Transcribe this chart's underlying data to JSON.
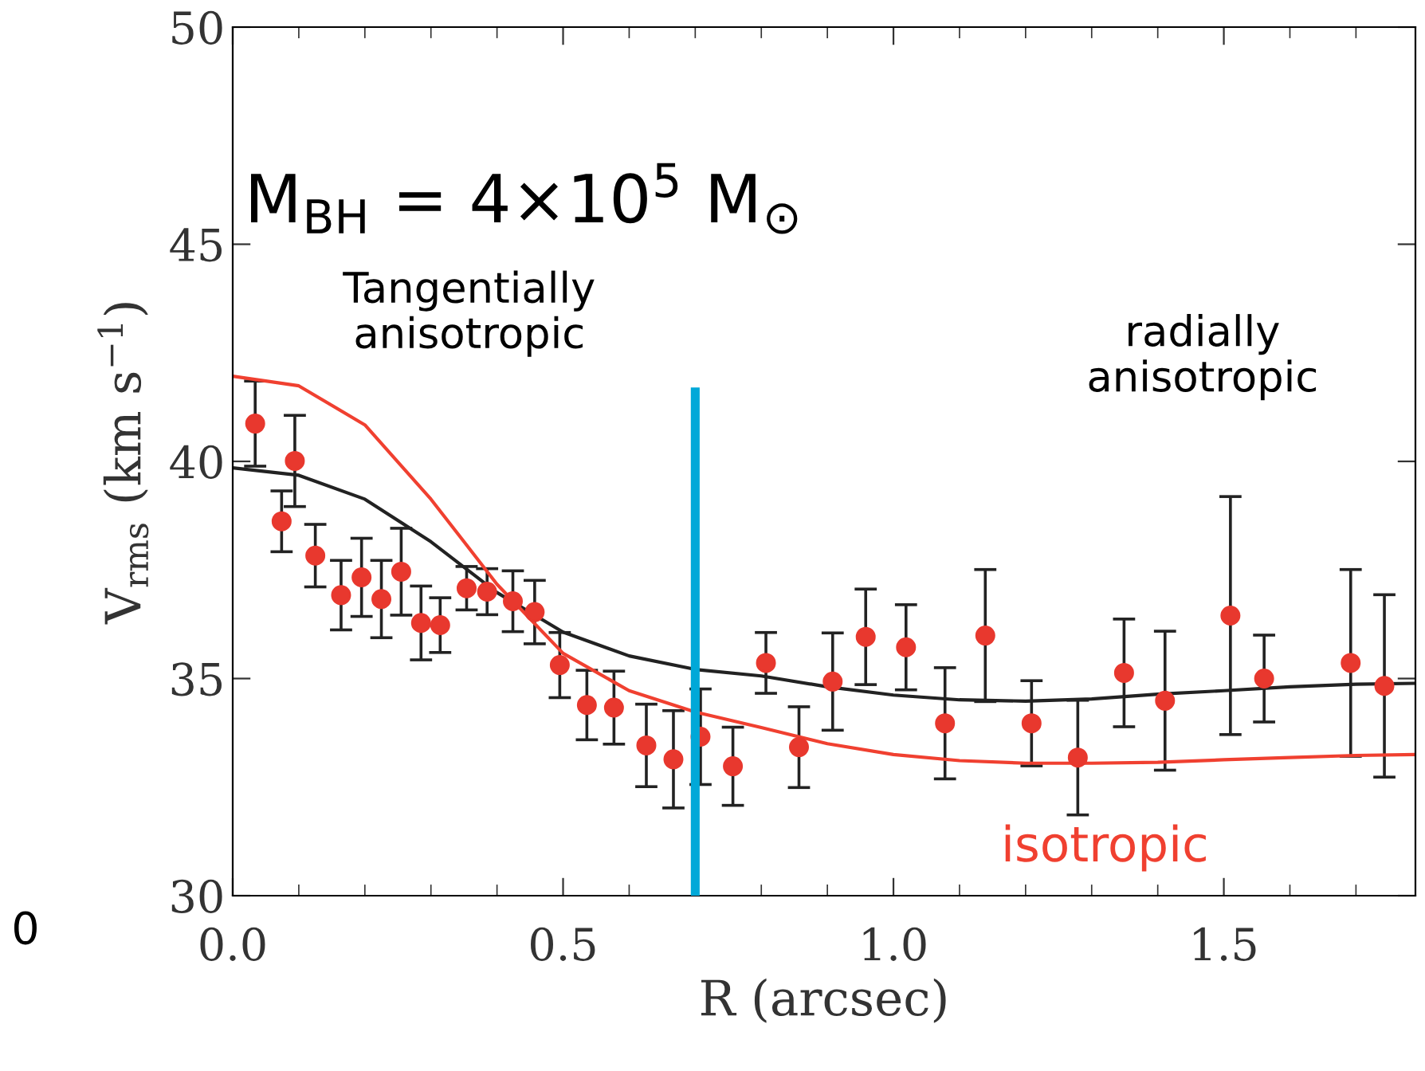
{
  "chart_data": {
    "type": "scatter",
    "xlabel": "R (arcsec)",
    "ylabel": "V$_{rms}$ (km s$^{−1}$)",
    "xlim": [
      0,
      1.79
    ],
    "ylim": [
      30,
      50
    ],
    "xticks": [
      {
        "value": 0,
        "label": "0.0"
      },
      {
        "value": 0.5,
        "label": "0.5"
      },
      {
        "value": 1.0,
        "label": "1.0"
      },
      {
        "value": 1.5,
        "label": "1.5"
      }
    ],
    "yticks": [
      30,
      35,
      40,
      45,
      50
    ],
    "grid": false,
    "legend": false,
    "annotations": [
      "M$_{BH}$ = 4×10$^{5}$ M$_{⊙}$",
      "Tangentially\nanisotropic",
      "radially\nanisotropic",
      "0"
    ],
    "ref_lines": [
      {
        "axis": "x",
        "value": 0.7,
        "color": "#00a8d8"
      }
    ],
    "series": [
      {
        "marker": "circle",
        "color": "#e8382e",
        "x": [
          0.034,
          0.074,
          0.094,
          0.125,
          0.164,
          0.195,
          0.225,
          0.255,
          0.285,
          0.314,
          0.354,
          0.385,
          0.424,
          0.457,
          0.495,
          0.536,
          0.577,
          0.626,
          0.667,
          0.708,
          0.757,
          0.807,
          0.857,
          0.908,
          0.958,
          1.019,
          1.078,
          1.139,
          1.209,
          1.279,
          1.349,
          1.411,
          1.51,
          1.561,
          1.692,
          1.743
        ],
        "values": [
          40.87,
          38.62,
          40.01,
          37.83,
          36.92,
          37.33,
          36.83,
          37.46,
          36.28,
          36.23,
          37.08,
          37.0,
          36.78,
          36.53,
          35.31,
          34.39,
          34.33,
          33.46,
          33.14,
          33.66,
          32.98,
          35.36,
          33.42,
          34.93,
          35.96,
          35.72,
          33.97,
          35.99,
          33.97,
          33.18,
          35.13,
          34.49,
          36.45,
          35.0,
          35.36,
          34.83
        ],
        "errors": [
          0.98,
          0.7,
          1.05,
          0.72,
          0.8,
          0.9,
          0.89,
          1.0,
          0.85,
          0.63,
          0.5,
          0.53,
          0.7,
          0.73,
          0.75,
          0.8,
          0.84,
          0.95,
          1.12,
          1.1,
          0.9,
          0.7,
          0.93,
          1.12,
          1.1,
          0.98,
          1.28,
          1.52,
          0.98,
          1.32,
          1.24,
          1.6,
          2.74,
          1.0,
          2.15,
          2.1
        ]
      },
      {
        "type": "line",
        "color": "#222222",
        "x": [
          0,
          0.1,
          0.2,
          0.3,
          0.4,
          0.5,
          0.6,
          0.7,
          0.8,
          0.9,
          1.0,
          1.1,
          1.2,
          1.3,
          1.4,
          1.5,
          1.6,
          1.7,
          1.79
        ],
        "values": [
          39.85,
          39.68,
          39.13,
          38.15,
          36.98,
          36.07,
          35.52,
          35.21,
          35.06,
          34.81,
          34.62,
          34.51,
          34.48,
          34.53,
          34.64,
          34.72,
          34.81,
          34.87,
          34.89
        ]
      },
      {
        "type": "line",
        "name": "isotropic",
        "color": "#f04030",
        "x": [
          0,
          0.1,
          0.2,
          0.3,
          0.35,
          0.4,
          0.5,
          0.6,
          0.7,
          0.8,
          0.9,
          1.0,
          1.1,
          1.2,
          1.3,
          1.4,
          1.5,
          1.6,
          1.7,
          1.79
        ],
        "values": [
          41.96,
          41.74,
          40.84,
          39.13,
          38.15,
          37.17,
          35.58,
          34.72,
          34.23,
          33.87,
          33.5,
          33.25,
          33.11,
          33.05,
          33.05,
          33.07,
          33.13,
          33.18,
          33.23,
          33.25
        ]
      }
    ]
  }
}
